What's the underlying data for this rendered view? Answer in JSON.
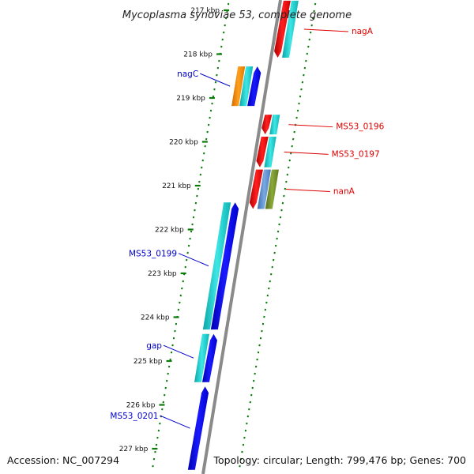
{
  "title": "Mycoplasma synoviae 53, complete genome",
  "footer": {
    "accession": "Accession: NC_007294",
    "summary": "Topology: circular; Length: 799,476 bp; Genes: 700"
  },
  "colors": {
    "backbone": "#888888",
    "tick": "#0a7a0a",
    "forward_label": "#0000cc",
    "reverse_label": "#dd0000",
    "cds_forward": "#0000ee",
    "cds_reverse": "#ee0000",
    "gene": "#14c8c8",
    "orange": "#ff8c00",
    "steel": "#5b8fd0",
    "olive": "#6b8e23"
  },
  "scale": {
    "ticks": [
      {
        "kbp": 217,
        "label": "217 kbp"
      },
      {
        "kbp": 218,
        "label": "218 kbp"
      },
      {
        "kbp": 219,
        "label": "219 kbp"
      },
      {
        "kbp": 220,
        "label": "220 kbp"
      },
      {
        "kbp": 221,
        "label": "221 kbp"
      },
      {
        "kbp": 222,
        "label": "222 kbp"
      },
      {
        "kbp": 223,
        "label": "223 kbp"
      },
      {
        "kbp": 224,
        "label": "224 kbp"
      },
      {
        "kbp": 225,
        "label": "225 kbp"
      },
      {
        "kbp": 226,
        "label": "226 kbp"
      },
      {
        "kbp": 227,
        "label": "227 kbp"
      }
    ]
  },
  "features": {
    "forward": [
      {
        "name": "nagC",
        "start_kbp": 218.3,
        "end_kbp": 219.2,
        "colors": [
          "orange",
          "gene",
          "cds_forward"
        ]
      },
      {
        "name": "MS53_0199",
        "start_kbp": 221.4,
        "end_kbp": 224.3,
        "colors": [
          "gene",
          "cds_forward"
        ]
      },
      {
        "name": "gap",
        "start_kbp": 224.4,
        "end_kbp": 225.5,
        "colors": [
          "gene",
          "cds_forward"
        ]
      },
      {
        "name": "MS53_0201",
        "start_kbp": 225.6,
        "end_kbp": 227.5,
        "colors": [
          "cds_forward"
        ]
      }
    ],
    "reverse": [
      {
        "name": "nagA",
        "start_kbp": 216.8,
        "end_kbp": 218.1,
        "colors": [
          "cds_reverse",
          "gene"
        ]
      },
      {
        "name": "MS53_0196",
        "start_kbp": 219.4,
        "end_kbp": 219.85,
        "colors": [
          "cds_reverse",
          "gene"
        ]
      },
      {
        "name": "MS53_0197",
        "start_kbp": 219.9,
        "end_kbp": 220.6,
        "colors": [
          "cds_reverse",
          "gene"
        ]
      },
      {
        "name": "nanA",
        "start_kbp": 220.65,
        "end_kbp": 221.55,
        "colors": [
          "cds_reverse",
          "steel",
          "olive"
        ]
      }
    ]
  }
}
